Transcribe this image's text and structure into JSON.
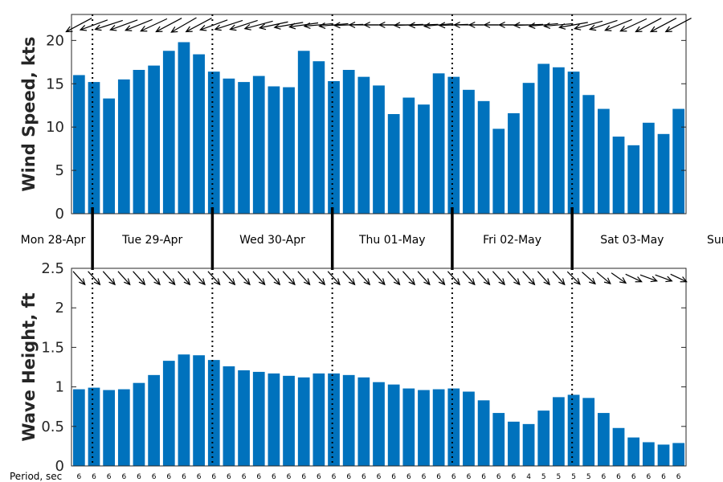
{
  "chart_data": [
    {
      "type": "bar",
      "ylabel": "Wind Speed, kts",
      "ylim": [
        0,
        23
      ],
      "yticks": [
        0,
        5,
        10,
        15,
        20
      ],
      "color": "#0072BD",
      "values": [
        16.0,
        15.2,
        13.3,
        15.5,
        16.6,
        17.1,
        18.8,
        19.8,
        18.4,
        16.4,
        15.6,
        15.2,
        15.9,
        14.7,
        14.6,
        18.8,
        17.6,
        15.3,
        16.6,
        15.8,
        14.8,
        11.5,
        13.4,
        12.6,
        16.2,
        15.8,
        14.3,
        13.0,
        9.8,
        11.6,
        15.1,
        17.3,
        16.9,
        16.4,
        13.7,
        12.1,
        8.9,
        7.9,
        10.5,
        9.2,
        12.1
      ],
      "wind_direction_from_deg": [
        62,
        70,
        72,
        70,
        68,
        65,
        62,
        60,
        62,
        70,
        72,
        72,
        75,
        78,
        80,
        82,
        85,
        85,
        88,
        90,
        90,
        90,
        88,
        88,
        85,
        88,
        90,
        90,
        90,
        90,
        88,
        85,
        85,
        80,
        75,
        72,
        68,
        65,
        62,
        62,
        62
      ]
    },
    {
      "type": "bar",
      "ylabel": "Wave Height, ft",
      "ylim": [
        0,
        2.5
      ],
      "yticks": [
        0,
        0.5,
        1,
        1.5,
        2,
        2.5
      ],
      "color": "#0072BD",
      "values": [
        0.97,
        0.99,
        0.96,
        0.97,
        1.05,
        1.15,
        1.33,
        1.41,
        1.4,
        1.34,
        1.26,
        1.21,
        1.19,
        1.17,
        1.14,
        1.12,
        1.17,
        1.17,
        1.15,
        1.12,
        1.06,
        1.03,
        0.98,
        0.96,
        0.97,
        0.98,
        0.94,
        0.83,
        0.67,
        0.56,
        0.53,
        0.7,
        0.87,
        0.9,
        0.86,
        0.67,
        0.48,
        0.36,
        0.3,
        0.27,
        0.29
      ],
      "wave_direction_from_deg": [
        318,
        318,
        318,
        318,
        318,
        318,
        318,
        318,
        318,
        318,
        318,
        318,
        318,
        318,
        318,
        318,
        318,
        318,
        318,
        318,
        318,
        318,
        318,
        318,
        318,
        318,
        318,
        318,
        318,
        318,
        318,
        318,
        318,
        315,
        312,
        310,
        305,
        295,
        290,
        290,
        295
      ],
      "period_title": "Period, sec",
      "periods": [
        "6",
        "6",
        "6",
        "6",
        "6",
        "6",
        "6",
        "6",
        "6",
        "6",
        "6",
        "6",
        "6",
        "6",
        "6",
        "6",
        "6",
        "6",
        "6",
        "6",
        "6",
        "6",
        "6",
        "6",
        "6",
        "6",
        "6",
        "6",
        "6",
        "6",
        "4",
        "5",
        "5",
        "5",
        "5",
        "6",
        "6",
        "6",
        "6",
        "6",
        "6"
      ]
    }
  ],
  "days": [
    "Mon 28-Apr",
    "Tue 29-Apr",
    "Wed 30-Apr",
    "Thu 01-May",
    "Fri 02-May",
    "Sat 03-May",
    "Sur"
  ],
  "day_boundaries_at_bar_index": [
    1,
    9,
    17,
    25,
    33
  ]
}
